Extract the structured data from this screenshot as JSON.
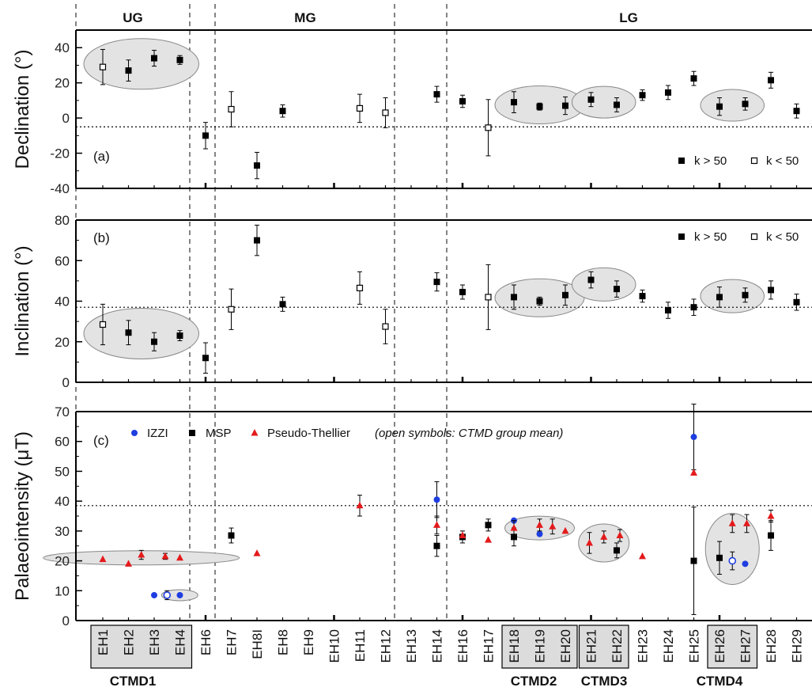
{
  "chart_data": {
    "type": "scatter",
    "categories": [
      "EH1",
      "EH2",
      "EH3",
      "EH4",
      "EH6",
      "EH7",
      "EH8I",
      "EH8",
      "EH9",
      "EH10",
      "EH11",
      "EH12",
      "EH13",
      "EH14",
      "EH16",
      "EH17",
      "EH18",
      "EH19",
      "EH20",
      "EH21",
      "EH22",
      "EH23",
      "EH24",
      "EH25",
      "EH26",
      "EH27",
      "EH28",
      "EH29"
    ],
    "sections": [
      "UG",
      "MG",
      "LG"
    ],
    "groups": [
      "CTMD1",
      "CTMD2",
      "CTMD3",
      "CTMD4"
    ],
    "panels": [
      {
        "label": "(a)",
        "ylabel": "Declination (°)",
        "ylim": [
          -40,
          50
        ],
        "yticks": [
          -40,
          -20,
          0,
          20,
          40
        ],
        "reference": -5,
        "legend": [
          "k > 50",
          "k < 50"
        ],
        "series": [
          {
            "name": "k > 50",
            "points": [
              {
                "x": "EH2",
                "y": 27,
                "err": 6
              },
              {
                "x": "EH3",
                "y": 34,
                "err": 4.5
              },
              {
                "x": "EH4",
                "y": 33,
                "err": 2.5
              },
              {
                "x": "EH6",
                "y": -10,
                "err": 7.5
              },
              {
                "x": "EH8I",
                "y": -27,
                "err": 7.5
              },
              {
                "x": "EH8",
                "y": 4,
                "err": 3.5
              },
              {
                "x": "EH14",
                "y": 13.5,
                "err": 4.5
              },
              {
                "x": "EH16",
                "y": 9.5,
                "err": 3.5
              },
              {
                "x": "EH18",
                "y": 9,
                "err": 6
              },
              {
                "x": "EH19",
                "y": 6.5,
                "err": 2
              },
              {
                "x": "EH20",
                "y": 7,
                "err": 5
              },
              {
                "x": "EH21",
                "y": 10.5,
                "err": 4
              },
              {
                "x": "EH22",
                "y": 7.5,
                "err": 4
              },
              {
                "x": "EH23",
                "y": 13,
                "err": 3
              },
              {
                "x": "EH24",
                "y": 14.5,
                "err": 4
              },
              {
                "x": "EH25",
                "y": 22.5,
                "err": 4
              },
              {
                "x": "EH26",
                "y": 6.5,
                "err": 5
              },
              {
                "x": "EH27",
                "y": 8,
                "err": 3.5
              },
              {
                "x": "EH28",
                "y": 21.5,
                "err": 4.5
              },
              {
                "x": "EH29",
                "y": 4,
                "err": 4
              }
            ]
          },
          {
            "name": "k < 50",
            "points": [
              {
                "x": "EH1",
                "y": 29,
                "err": 10
              },
              {
                "x": "EH7",
                "y": 5,
                "err": 10
              },
              {
                "x": "EH11",
                "y": 5.5,
                "err": 8
              },
              {
                "x": "EH12",
                "y": 3,
                "err": 8.5
              },
              {
                "x": "EH17",
                "y": -5.5,
                "err": 16
              }
            ]
          }
        ],
        "ellipses": [
          [
            "EH1",
            "EH4"
          ],
          [
            "EH18",
            "EH20"
          ],
          [
            "EH21",
            "EH22"
          ],
          [
            "EH26",
            "EH27"
          ]
        ]
      },
      {
        "label": "(b)",
        "ylabel": "Inclination (°)",
        "ylim": [
          0,
          80
        ],
        "yticks": [
          0,
          20,
          40,
          60,
          80
        ],
        "reference": 37,
        "legend": [
          "k > 50",
          "k < 50"
        ],
        "series": [
          {
            "name": "k > 50",
            "points": [
              {
                "x": "EH2",
                "y": 24.5,
                "err": 6
              },
              {
                "x": "EH3",
                "y": 20,
                "err": 4.5
              },
              {
                "x": "EH4",
                "y": 23,
                "err": 2.5
              },
              {
                "x": "EH6",
                "y": 12,
                "err": 7.5
              },
              {
                "x": "EH8I",
                "y": 70,
                "err": 7.5
              },
              {
                "x": "EH8",
                "y": 38.5,
                "err": 3.5
              },
              {
                "x": "EH14",
                "y": 49.5,
                "err": 4.5
              },
              {
                "x": "EH16",
                "y": 44.5,
                "err": 3.5
              },
              {
                "x": "EH18",
                "y": 42,
                "err": 6
              },
              {
                "x": "EH19",
                "y": 40,
                "err": 2
              },
              {
                "x": "EH20",
                "y": 43,
                "err": 5
              },
              {
                "x": "EH21",
                "y": 50.5,
                "err": 4
              },
              {
                "x": "EH22",
                "y": 46,
                "err": 4
              },
              {
                "x": "EH23",
                "y": 42.5,
                "err": 3
              },
              {
                "x": "EH24",
                "y": 35.5,
                "err": 4
              },
              {
                "x": "EH25",
                "y": 37,
                "err": 4
              },
              {
                "x": "EH26",
                "y": 42,
                "err": 5
              },
              {
                "x": "EH27",
                "y": 43,
                "err": 3.5
              },
              {
                "x": "EH28",
                "y": 45.5,
                "err": 4.5
              },
              {
                "x": "EH29",
                "y": 39.5,
                "err": 4
              }
            ]
          },
          {
            "name": "k < 50",
            "points": [
              {
                "x": "EH1",
                "y": 28.5,
                "err": 10
              },
              {
                "x": "EH7",
                "y": 36,
                "err": 10
              },
              {
                "x": "EH11",
                "y": 46.5,
                "err": 8
              },
              {
                "x": "EH12",
                "y": 27.5,
                "err": 8.5
              },
              {
                "x": "EH17",
                "y": 42,
                "err": 16
              }
            ]
          }
        ],
        "ellipses": [
          [
            "EH1",
            "EH4"
          ],
          [
            "EH18",
            "EH20"
          ],
          [
            "EH21",
            "EH22"
          ],
          [
            "EH26",
            "EH27"
          ]
        ]
      },
      {
        "label": "(c)",
        "ylabel": "Palaeointensity (μT)",
        "ylim": [
          0,
          70
        ],
        "yticks": [
          0,
          10,
          20,
          30,
          40,
          50,
          60,
          70
        ],
        "reference": 38.5,
        "legend": [
          "IZZI",
          "MSP",
          "Pseudo-Thellier"
        ],
        "note": "(open symbols: CTMD group mean)",
        "series": [
          {
            "name": "IZZI",
            "points": [
              {
                "x": "EH3",
                "y": 8.5
              },
              {
                "x": "EH4",
                "y": 8.5
              },
              {
                "x": "EH14",
                "y": 40.5,
                "err": 6
              },
              {
                "x": "EH18",
                "y": 33.5
              },
              {
                "x": "EH19",
                "y": 29
              },
              {
                "x": "EH25",
                "y": 61.5,
                "err": 11
              },
              {
                "x": "EH27",
                "y": 19
              }
            ]
          },
          {
            "name": "IZZI group mean",
            "points": [
              {
                "x": "EH3.5",
                "y": 8.5,
                "err": 1.5
              },
              {
                "x": "EH26.5",
                "y": 20,
                "err": 3
              }
            ]
          },
          {
            "name": "MSP",
            "points": [
              {
                "x": "EH7",
                "y": 28.5,
                "err": 2.5
              },
              {
                "x": "EH14",
                "y": 25,
                "err": 3.5
              },
              {
                "x": "EH16",
                "y": 28,
                "err": 2
              },
              {
                "x": "EH17",
                "y": 32,
                "err": 2
              },
              {
                "x": "EH18",
                "y": 28,
                "err": 3
              },
              {
                "x": "EH22",
                "y": 23.5,
                "err": 2.5
              },
              {
                "x": "EH25",
                "y": 20,
                "err": 18
              },
              {
                "x": "EH26",
                "y": 21,
                "err": 5.5
              },
              {
                "x": "EH28",
                "y": 28.5,
                "err": 5
              }
            ]
          },
          {
            "name": "Pseudo-Thellier",
            "points": [
              {
                "x": "EH1",
                "y": 20.5
              },
              {
                "x": "EH2",
                "y": 19
              },
              {
                "x": "EH4",
                "y": 21
              },
              {
                "x": "EH8I",
                "y": 22.5
              },
              {
                "x": "EH11",
                "y": 38.5,
                "err": 3.5
              },
              {
                "x": "EH14",
                "y": 32,
                "err": 3
              },
              {
                "x": "EH16",
                "y": 28.5
              },
              {
                "x": "EH17",
                "y": 27
              },
              {
                "x": "EH18",
                "y": 31,
                "err": 2.5
              },
              {
                "x": "EH19",
                "y": 32,
                "err": 2
              },
              {
                "x": "EH20",
                "y": 30
              },
              {
                "x": "EH23",
                "y": 21.5
              },
              {
                "x": "EH25",
                "y": 49.5
              },
              {
                "x": "EH28",
                "y": 35,
                "err": 2
              }
            ]
          },
          {
            "name": "Pseudo-Thellier group mean",
            "points": [
              {
                "x": "EH2.5",
                "y": 22,
                "err": 1.5
              },
              {
                "x": "EH3",
                "y": 21.5,
                "err": 1
              },
              {
                "x": "EH19.5",
                "y": 31.5,
                "err": 2.5
              },
              {
                "x": "EH21",
                "y": 26,
                "err": 3.5
              },
              {
                "x": "EH21.5",
                "y": 28,
                "err": 2
              },
              {
                "x": "EH22",
                "y": 28.5,
                "err": 2
              },
              {
                "x": "EH26.5",
                "y": 32.5,
                "err": 3
              },
              {
                "x": "EH27",
                "y": 32.5,
                "err": 3
              }
            ]
          }
        ]
      }
    ]
  }
}
